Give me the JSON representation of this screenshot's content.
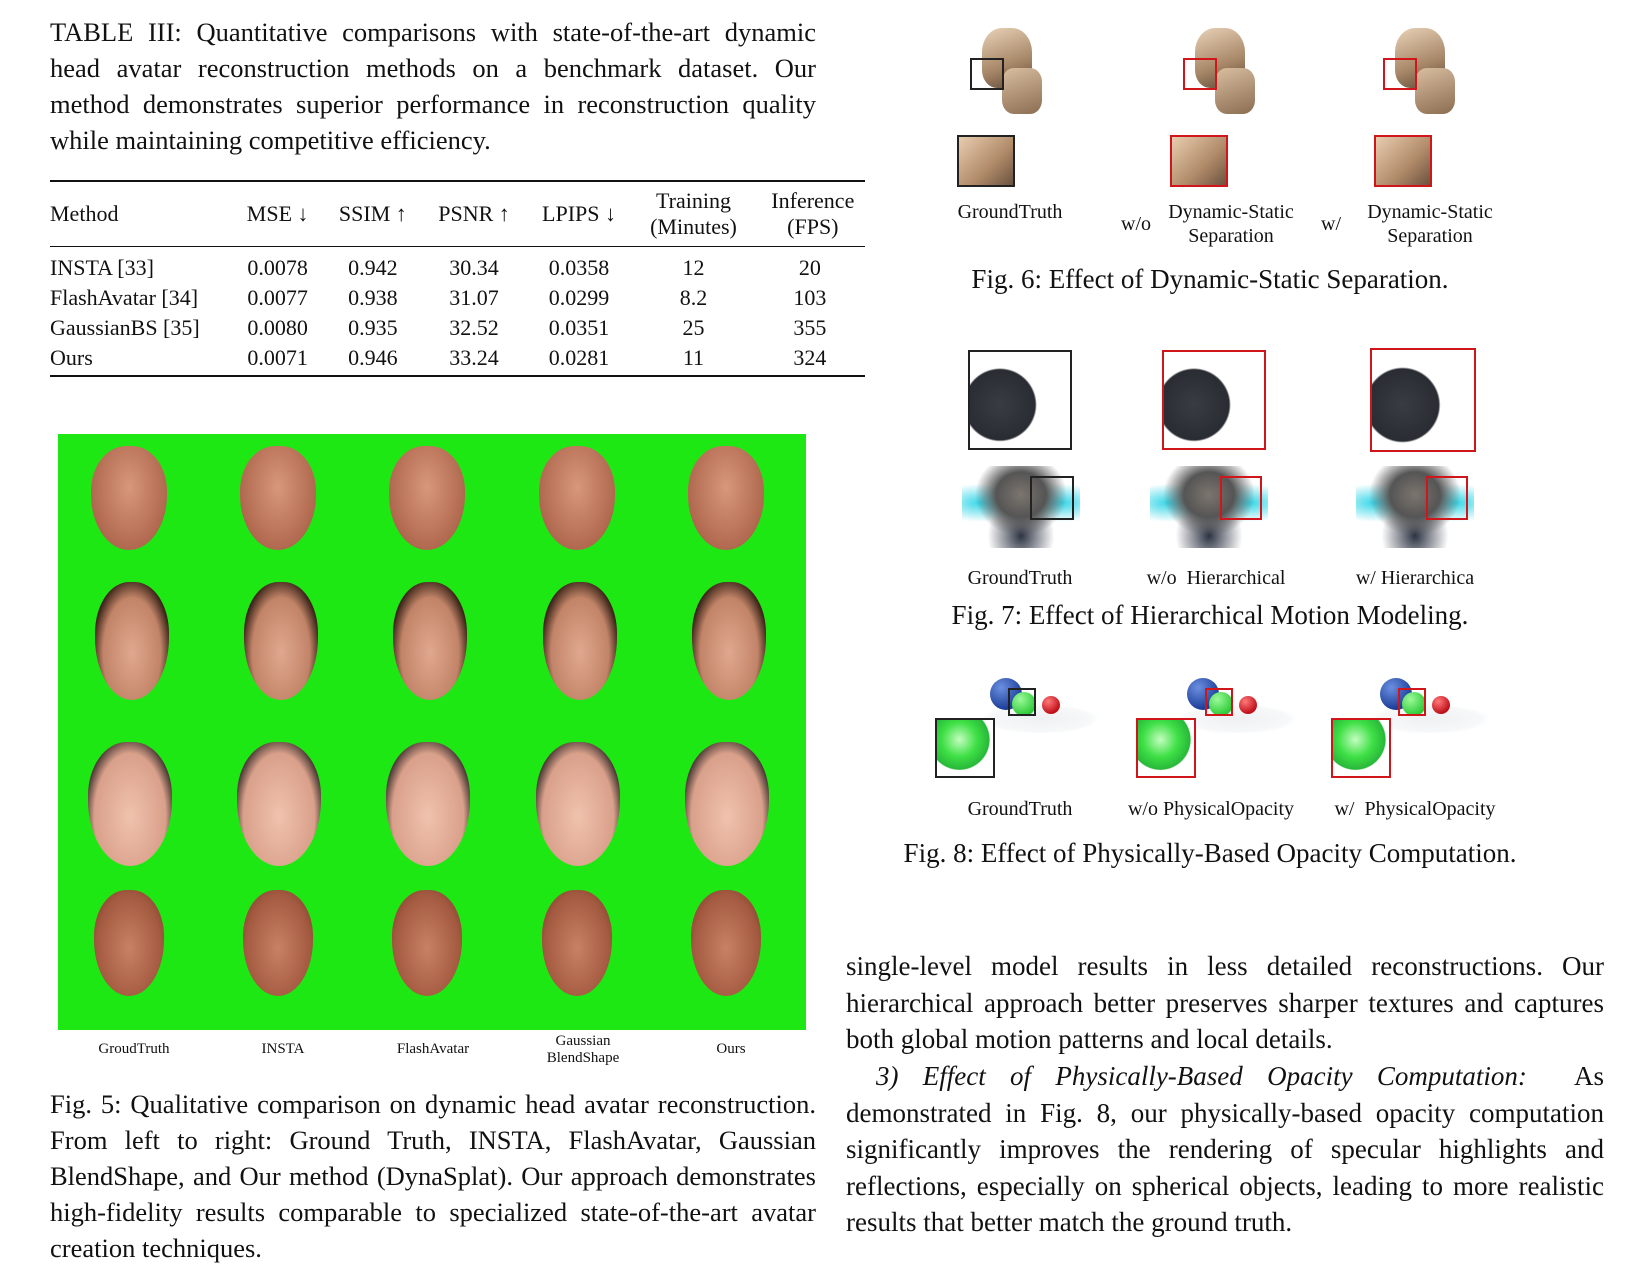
{
  "table3": {
    "caption": "TABLE III: Quantitative comparisons with state-of-the-art dynamic head avatar reconstruction methods on a benchmark dataset. Our method demonstrates superior performance in reconstruction quality while maintaining competitive efficiency.",
    "headers": [
      "Method",
      "MSE ↓",
      "SSIM ↑",
      "PSNR ↑",
      "LPIPS ↓",
      "Training",
      "(Minutes)",
      "Inference",
      "(FPS)"
    ],
    "rows": [
      {
        "method": "INSTA [33]",
        "mse": "0.0078",
        "ssim": "0.942",
        "psnr": "30.34",
        "lpips": "0.0358",
        "training": "12",
        "inference": "20"
      },
      {
        "method": "FlashAvatar [34]",
        "mse": "0.0077",
        "ssim": "0.938",
        "psnr": "31.07",
        "lpips": "0.0299",
        "training": "8.2",
        "inference": "103"
      },
      {
        "method": "GaussianBS [35]",
        "mse": "0.0080",
        "ssim": "0.935",
        "psnr": "32.52",
        "lpips": "0.0351",
        "training": "25",
        "inference": "355"
      },
      {
        "method": "Ours",
        "mse": "0.0071",
        "ssim": "0.946",
        "psnr": "33.24",
        "lpips": "0.0281",
        "training": "11",
        "inference": "324"
      }
    ]
  },
  "fig5": {
    "column_labels": [
      "GroudTruth",
      "INSTA",
      "FlashAvatar",
      "Gaussian",
      "BlendShape",
      "Ours"
    ],
    "caption": "Fig. 5: Qualitative comparison on dynamic head avatar reconstruction. From left to right: Ground Truth, INSTA, FlashAvatar, Gaussian BlendShape, and Our method (DynaSplat). Our approach demonstrates high-fidelity results comparable to specialized state-of-the-art avatar creation techniques."
  },
  "fig6": {
    "labels": {
      "gt": "GroundTruth",
      "wo": "w/o",
      "w": "w/",
      "method_a": "Dynamic-Static",
      "method_b": "Separation"
    },
    "caption": "Fig. 6: Effect of Dynamic-Static Separation."
  },
  "fig7": {
    "labels": {
      "gt": "GroundTruth",
      "wo": "w/o  Hierarchical",
      "w": "w/ Hierarchica"
    },
    "caption": "Fig. 7: Effect of Hierarchical Motion Modeling."
  },
  "fig8": {
    "labels": {
      "gt": "GroundTruth",
      "wo": "w/o PhysicalOpacity",
      "w": "w/  PhysicalOpacity"
    },
    "caption": "Fig. 8: Effect of Physically-Based Opacity Computation."
  },
  "body": {
    "para1": "single-level model results in less detailed reconstructions. Our hierarchical approach better preserves sharper textures and captures both global motion patterns and local details.",
    "para2_heading": "3) Effect of Physically-Based Opacity Computation:",
    "para2": "As demonstrated in Fig. 8, our physically-based opacity computation significantly improves the rendering of specular highlights and reflections, especially on spherical objects, leading to more realistic results that better match the ground truth."
  },
  "colors": {
    "green_screen": "#1ee814",
    "highlight_box": "#d0161b"
  }
}
